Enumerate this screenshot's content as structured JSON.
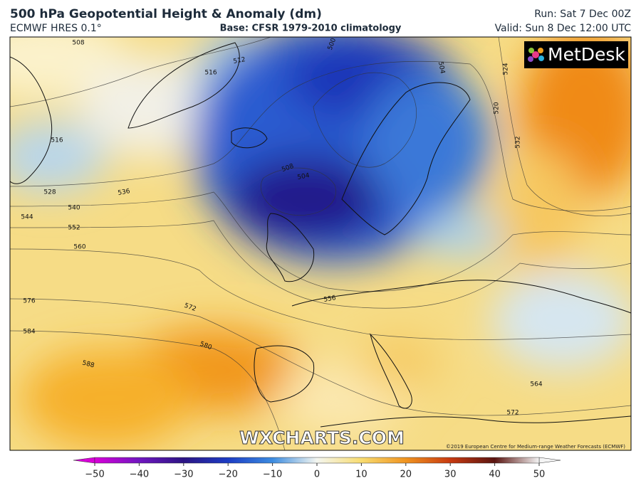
{
  "header": {
    "title": "500 hPa Geopotential Height & Anomaly (dm)",
    "model": "ECMWF HRES 0.1°",
    "base": "Base: CFSR 1979-2010 climatology",
    "run": "Run: Sat 7 Dec 00Z",
    "valid": "Valid: Sun 8 Dec 12:00 UTC"
  },
  "map": {
    "logo": "MetDesk",
    "watermark": "WXCHARTS.COM",
    "copyright": "©2019 European Centre for Medium-range Weather Forecasts (ECMWF)",
    "contour_labels": [
      508,
      512,
      516,
      500,
      504,
      524,
      520,
      532,
      516,
      528,
      536,
      540,
      544,
      552,
      560,
      576,
      572,
      556,
      584,
      580,
      588,
      564,
      572,
      508,
      504
    ]
  },
  "colorbar": {
    "range": [
      -50,
      50
    ],
    "ticks": [
      {
        "value": -50,
        "label": "−50"
      },
      {
        "value": -40,
        "label": "−40"
      },
      {
        "value": -30,
        "label": "−30"
      },
      {
        "value": -20,
        "label": "−20"
      },
      {
        "value": -10,
        "label": "−10"
      },
      0,
      10,
      20,
      30,
      40,
      50
    ],
    "colors": [
      "#d800d8",
      "#7016c0",
      "#2c1484",
      "#1c3cc4",
      "#3c8ce0",
      "#f4f6f0",
      "#f8dc70",
      "#f09420",
      "#c83a10",
      "#5a1410",
      "#f4f4f4"
    ]
  }
}
